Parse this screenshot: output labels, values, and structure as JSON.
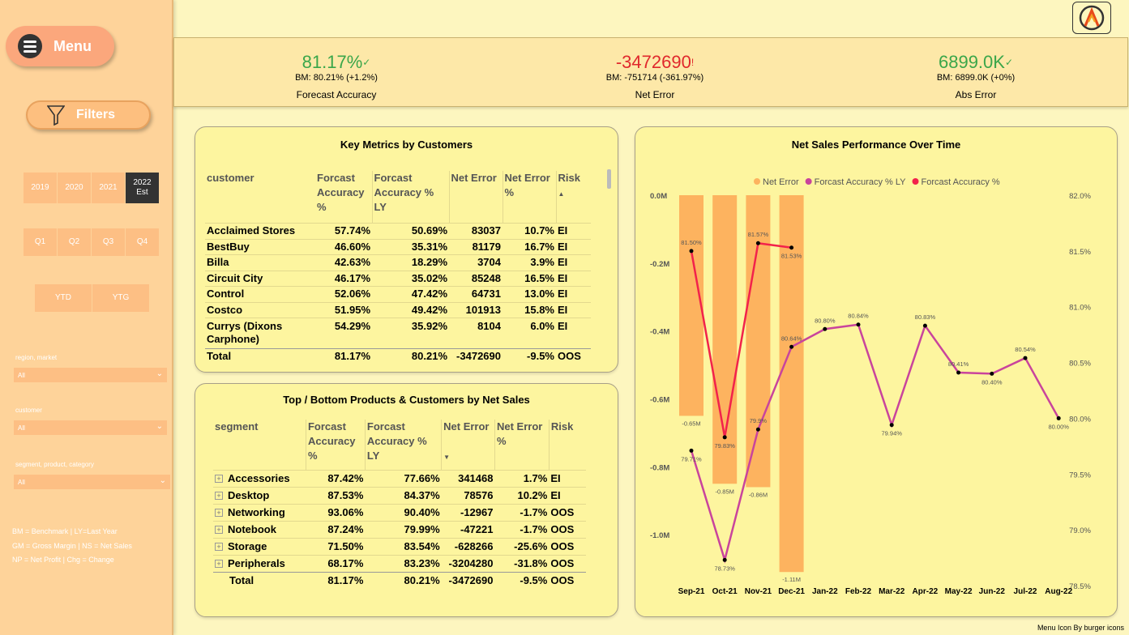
{
  "sidebar": {
    "menu_label": "Menu",
    "filters_label": "Filters",
    "years": [
      {
        "label": "2019",
        "sub": "",
        "selected": false
      },
      {
        "label": "2020",
        "sub": "",
        "selected": false
      },
      {
        "label": "2021",
        "sub": "",
        "selected": false
      },
      {
        "label": "2022",
        "sub": "Est",
        "selected": true
      }
    ],
    "quarters": [
      "Q1",
      "Q2",
      "Q3",
      "Q4"
    ],
    "periods": [
      "YTD",
      "YTG"
    ],
    "dropdowns": [
      {
        "label": "region, market",
        "value": "All"
      },
      {
        "label": "customer",
        "value": "All"
      },
      {
        "label": "segment, product, category",
        "value": "All"
      }
    ],
    "notes": [
      "BM = Benchmark | LY=Last Year",
      "GM = Gross Margin | NS = Net Sales",
      "NP = Net Profit | Chg = Change"
    ]
  },
  "kpis": [
    {
      "value": "81.17%",
      "indicator": "✓",
      "bm": "BM: 80.21% (+1.2%)",
      "label": "Forecast Accuracy",
      "color": "#3aa64a"
    },
    {
      "value": "-3472690",
      "indicator": "!",
      "bm": "BM: -751714 (-361.97%)",
      "label": "Net Error",
      "color": "#e0282c"
    },
    {
      "value": "6899.0K",
      "indicator": "✓",
      "bm": "BM: 6899.0K (+0%)",
      "label": "Abs Error",
      "color": "#3aa64a"
    }
  ],
  "customers_table": {
    "title": "Key Metrics by Customers",
    "headers": [
      "customer",
      "Forcast Accuracy %",
      "Forcast Accuracy % LY",
      "Net Error",
      "Net Error %",
      "Risk"
    ],
    "rows": [
      [
        "Acclaimed Stores",
        "57.74%",
        "50.69%",
        "83037",
        "10.7%",
        "EI"
      ],
      [
        "BestBuy",
        "46.60%",
        "35.31%",
        "81179",
        "16.7%",
        "EI"
      ],
      [
        "Billa",
        "42.63%",
        "18.29%",
        "3704",
        "3.9%",
        "EI"
      ],
      [
        "Circuit City",
        "46.17%",
        "35.02%",
        "85248",
        "16.5%",
        "EI"
      ],
      [
        "Control",
        "52.06%",
        "47.42%",
        "64731",
        "13.0%",
        "EI"
      ],
      [
        "Costco",
        "51.95%",
        "49.42%",
        "101913",
        "15.8%",
        "EI"
      ],
      [
        "Currys (Dixons Carphone)",
        "54.29%",
        "35.92%",
        "8104",
        "6.0%",
        "EI"
      ]
    ],
    "total": [
      "Total",
      "81.17%",
      "80.21%",
      "-3472690",
      "-9.5%",
      "OOS"
    ]
  },
  "segments_table": {
    "title": "Top / Bottom Products & Customers by Net Sales",
    "headers": [
      "segment",
      "Forcast Accuracy %",
      "Forcast Accuracy % LY",
      "Net Error",
      "Net Error %",
      "Risk"
    ],
    "rows": [
      [
        "Accessories",
        "87.42%",
        "77.66%",
        "341468",
        "1.7%",
        "EI"
      ],
      [
        "Desktop",
        "87.53%",
        "84.37%",
        "78576",
        "10.2%",
        "EI"
      ],
      [
        "Networking",
        "93.06%",
        "90.40%",
        "-12967",
        "-1.7%",
        "OOS"
      ],
      [
        "Notebook",
        "87.24%",
        "79.99%",
        "-47221",
        "-1.7%",
        "OOS"
      ],
      [
        "Storage",
        "71.50%",
        "83.54%",
        "-628266",
        "-25.6%",
        "OOS"
      ],
      [
        "Peripherals",
        "68.17%",
        "83.23%",
        "-3204280",
        "-31.8%",
        "OOS"
      ]
    ],
    "total": [
      "Total",
      "81.17%",
      "80.21%",
      "-3472690",
      "-9.5%",
      "OOS"
    ]
  },
  "chart_data": {
    "type": "bar",
    "title": "Net Sales Performance Over Time",
    "categories": [
      "Sep-21",
      "Oct-21",
      "Nov-21",
      "Dec-21",
      "Jan-22",
      "Feb-22",
      "Mar-22",
      "Apr-22",
      "May-22",
      "Jun-22",
      "Jul-22",
      "Aug-22"
    ],
    "legend_position": "top",
    "series": [
      {
        "name": "Net Error",
        "type": "bar",
        "axis": "left",
        "color": "#fdb35f",
        "values": [
          -0.65,
          -0.85,
          -0.86,
          -1.11,
          null,
          null,
          null,
          null,
          null,
          null,
          null,
          null
        ],
        "labels": [
          "-0.65M",
          "-0.85M",
          "-0.86M",
          "-1.11M",
          "",
          "",
          "",
          "",
          "",
          "",
          "",
          ""
        ]
      },
      {
        "name": "Forcast Accuracy % LY",
        "type": "line",
        "axis": "right",
        "color": "#c9449c",
        "values": [
          79.71,
          78.73,
          79.9,
          80.64,
          80.8,
          80.84,
          79.94,
          80.83,
          80.41,
          80.4,
          80.54,
          80.0
        ],
        "labels": [
          "79.71%",
          "78.73%",
          "79.9%",
          "80.64%",
          "80.80%",
          "80.84%",
          "79.94%",
          "80.83%",
          "80.41%",
          "80.40%",
          "80.54%",
          "80.00%"
        ]
      },
      {
        "name": "Forcast Accuracy %",
        "type": "line",
        "axis": "right",
        "color": "#f2224b",
        "values": [
          81.5,
          79.83,
          81.57,
          81.53,
          null,
          null,
          null,
          null,
          null,
          null,
          null,
          null
        ],
        "labels": [
          "81.50%",
          "79.83%",
          "81.57%",
          "81.53%",
          "",
          "",
          "",
          "",
          "",
          "",
          "",
          ""
        ]
      }
    ],
    "left_axis": {
      "ticks": [
        "0.0M",
        "-0.2M",
        "-0.4M",
        "-0.6M",
        "-0.8M",
        "-1.0M"
      ],
      "ylim": [
        -1.15,
        0
      ]
    },
    "right_axis": {
      "ticks": [
        "82.0%",
        "81.5%",
        "81.0%",
        "80.5%",
        "80.0%",
        "79.5%",
        "79.0%",
        "78.5%"
      ],
      "ylim": [
        78.5,
        82.0
      ]
    }
  },
  "footer": "Menu Icon By burger icons"
}
